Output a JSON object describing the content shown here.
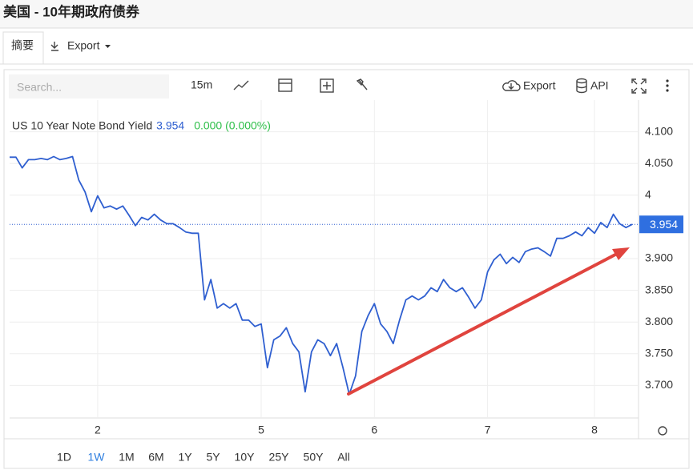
{
  "header": {
    "title": "美国 - 10年期政府债券"
  },
  "tabs": [
    "摘要",
    "Export"
  ],
  "toolbar": {
    "search_placeholder": "Search...",
    "interval": "15m",
    "export": "Export",
    "api": "API"
  },
  "ranges": [
    "1D",
    "1W",
    "1M",
    "6M",
    "1Y",
    "5Y",
    "10Y",
    "25Y",
    "50Y",
    "All"
  ],
  "active_range": 1,
  "chart_data": {
    "type": "line",
    "series": [
      {
        "name": "US 10 Year Note Bond Yield",
        "color": "#2f5fd0",
        "values": [
          4.06,
          4.06,
          4.043,
          4.056,
          4.056,
          4.058,
          4.056,
          4.061,
          4.056,
          4.058,
          4.061,
          4.024,
          4.005,
          3.974,
          3.999,
          3.98,
          3.983,
          3.978,
          3.983,
          3.968,
          3.952,
          3.965,
          3.961,
          3.97,
          3.961,
          3.955,
          3.955,
          3.949,
          3.942,
          3.94,
          3.94,
          3.835,
          3.867,
          3.822,
          3.829,
          3.822,
          3.829,
          3.803,
          3.803,
          3.793,
          3.797,
          3.728,
          3.772,
          3.778,
          3.791,
          3.766,
          3.753,
          3.69,
          3.753,
          3.772,
          3.766,
          3.747,
          3.766,
          3.728,
          3.686,
          3.715,
          3.785,
          3.81,
          3.829,
          3.797,
          3.785,
          3.766,
          3.803,
          3.835,
          3.841,
          3.835,
          3.841,
          3.854,
          3.848,
          3.867,
          3.854,
          3.848,
          3.854,
          3.839,
          3.822,
          3.835,
          3.879,
          3.898,
          3.907,
          3.892,
          3.902,
          3.894,
          3.911,
          3.915,
          3.917,
          3.911,
          3.904,
          3.932,
          3.932,
          3.936,
          3.942,
          3.936,
          3.949,
          3.94,
          3.957,
          3.949,
          3.97,
          3.955,
          3.949,
          3.954
        ]
      }
    ],
    "last": 3.954,
    "change_label": "0.000 (0.000%)",
    "xlim": [
      0,
      100
    ],
    "xticks": [
      {
        "value": 14,
        "label": "2"
      },
      {
        "value": 40,
        "label": "5"
      },
      {
        "value": 58,
        "label": "6"
      },
      {
        "value": 76,
        "label": "7"
      },
      {
        "value": 93,
        "label": "8"
      }
    ],
    "ylim": [
      3.65,
      4.15
    ],
    "yticks": [
      {
        "value": 3.7,
        "label": "3.700"
      },
      {
        "value": 3.75,
        "label": "3.750"
      },
      {
        "value": 3.8,
        "label": "3.800"
      },
      {
        "value": 3.85,
        "label": "3.850"
      },
      {
        "value": 3.9,
        "label": "3.900"
      },
      4,
      {
        "value": 4.05,
        "label": "4.050"
      },
      {
        "value": 4.1,
        "label": "4.100"
      }
    ],
    "grid": true
  }
}
